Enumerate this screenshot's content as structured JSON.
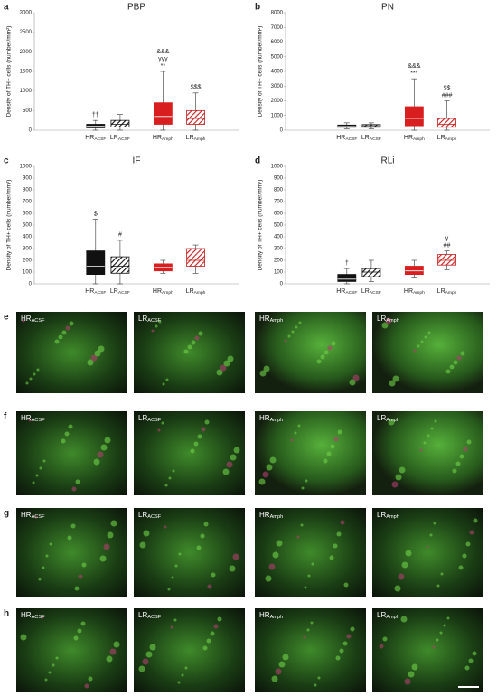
{
  "chart_data": [
    {
      "type": "box",
      "letter": "a",
      "title": "PBP",
      "y_label": "Density of TH+ cells (number/mm²)",
      "categories": [
        "HR",
        "LR",
        "HR",
        "LR"
      ],
      "category_subscripts": [
        "ACSF",
        "ACSF",
        "Amph",
        "Amph"
      ],
      "colors": [
        "#111111",
        "#111111",
        "#d81e1e",
        "#c81e1e"
      ],
      "hatched": [
        false,
        true,
        false,
        true
      ],
      "boxes": [
        {
          "min": 0,
          "q1": 60,
          "median": 100,
          "q3": 150,
          "max": 250
        },
        {
          "min": 0,
          "q1": 80,
          "median": 150,
          "q3": 250,
          "max": 400
        },
        {
          "min": 0,
          "q1": 150,
          "median": 350,
          "q3": 700,
          "max": 1500
        },
        {
          "min": 0,
          "q1": 150,
          "median": 300,
          "q3": 500,
          "max": 950
        }
      ],
      "annotations": [
        [
          "††"
        ],
        [],
        [
          "&&&",
          "γγγ",
          "**"
        ],
        [
          "$$$"
        ]
      ],
      "ylim": [
        0,
        3000
      ],
      "yticks": [
        0,
        500,
        1000,
        1500,
        2000,
        2500,
        3000
      ]
    },
    {
      "type": "box",
      "letter": "b",
      "title": "PN",
      "y_label": "Density of TH+ cells (number/mm²)",
      "categories": [
        "HR",
        "LR",
        "HR",
        "LR"
      ],
      "category_subscripts": [
        "ACSF",
        "ACSF",
        "Amph",
        "Amph"
      ],
      "colors": [
        "#111111",
        "#111111",
        "#d81e1e",
        "#c81e1e"
      ],
      "hatched": [
        false,
        true,
        false,
        true
      ],
      "boxes": [
        {
          "min": 100,
          "q1": 200,
          "median": 250,
          "q3": 350,
          "max": 500
        },
        {
          "min": 100,
          "q1": 200,
          "median": 300,
          "q3": 380,
          "max": 500
        },
        {
          "min": 0,
          "q1": 300,
          "median": 800,
          "q3": 1600,
          "max": 3500
        },
        {
          "min": 0,
          "q1": 200,
          "median": 400,
          "q3": 800,
          "max": 2000
        }
      ],
      "annotations": [
        [],
        [],
        [
          "&&&",
          "***"
        ],
        [
          "$$",
          "###"
        ]
      ],
      "ylim": [
        0,
        8000
      ],
      "yticks": [
        0,
        1000,
        2000,
        3000,
        4000,
        5000,
        6000,
        7000,
        8000
      ]
    },
    {
      "type": "box",
      "letter": "c",
      "title": "IF",
      "y_label": "Density of TH+ cells (number/mm²)",
      "categories": [
        "HR",
        "LR",
        "HR",
        "LR"
      ],
      "category_subscripts": [
        "ACSF",
        "ACSF",
        "Amph",
        "Amph"
      ],
      "colors": [
        "#111111",
        "#111111",
        "#d81e1e",
        "#c81e1e"
      ],
      "hatched": [
        false,
        true,
        false,
        true
      ],
      "boxes": [
        {
          "min": 0,
          "q1": 80,
          "median": 150,
          "q3": 280,
          "max": 550
        },
        {
          "min": 0,
          "q1": 90,
          "median": 150,
          "q3": 230,
          "max": 370
        },
        {
          "min": 90,
          "q1": 110,
          "median": 140,
          "q3": 170,
          "max": 200
        },
        {
          "min": 90,
          "q1": 150,
          "median": 200,
          "q3": 300,
          "max": 330
        }
      ],
      "annotations": [
        [
          "$"
        ],
        [
          "#"
        ],
        [],
        []
      ],
      "ylim": [
        0,
        1000
      ],
      "yticks": [
        0,
        100,
        200,
        300,
        400,
        500,
        600,
        700,
        800,
        900,
        1000
      ]
    },
    {
      "type": "box",
      "letter": "d",
      "title": "RLi",
      "y_label": "Density of TH+ cells (number/mm²)",
      "categories": [
        "HR",
        "LR",
        "HR",
        "LR"
      ],
      "category_subscripts": [
        "ACSF",
        "ACSF",
        "Amph",
        "Amph"
      ],
      "colors": [
        "#111111",
        "#111111",
        "#d81e1e",
        "#c81e1e"
      ],
      "hatched": [
        false,
        true,
        false,
        true
      ],
      "boxes": [
        {
          "min": 0,
          "q1": 20,
          "median": 40,
          "q3": 80,
          "max": 130
        },
        {
          "min": 20,
          "q1": 60,
          "median": 100,
          "q3": 130,
          "max": 200
        },
        {
          "min": 50,
          "q1": 80,
          "median": 110,
          "q3": 150,
          "max": 200
        },
        {
          "min": 120,
          "q1": 160,
          "median": 200,
          "q3": 250,
          "max": 280
        }
      ],
      "annotations": [
        [
          "†"
        ],
        [],
        [],
        [
          "γ",
          "##"
        ]
      ],
      "ylim": [
        0,
        1000
      ],
      "yticks": [
        0,
        100,
        200,
        300,
        400,
        500,
        600,
        700,
        800,
        900,
        1000
      ]
    }
  ],
  "image_panels": {
    "rows": [
      {
        "letter": "e",
        "labels": [
          {
            "main": "HR",
            "sub": "ACSF"
          },
          {
            "main": "LR",
            "sub": "ACSF"
          },
          {
            "main": "HR",
            "sub": "Amph"
          },
          {
            "main": "LR",
            "sub": "Amph"
          }
        ]
      },
      {
        "letter": "f",
        "labels": [
          {
            "main": "HR",
            "sub": "ACSF"
          },
          {
            "main": "LR",
            "sub": "ACSF"
          },
          {
            "main": "HR",
            "sub": "Amph"
          },
          {
            "main": "LR",
            "sub": "Amph"
          }
        ]
      },
      {
        "letter": "g",
        "labels": [
          {
            "main": "HR",
            "sub": "ACSF"
          },
          {
            "main": "LR",
            "sub": "ACSF"
          },
          {
            "main": "HR",
            "sub": "Amph"
          },
          {
            "main": "LR",
            "sub": "Amph"
          }
        ]
      },
      {
        "letter": "h",
        "labels": [
          {
            "main": "HR",
            "sub": "ACSF"
          },
          {
            "main": "LR",
            "sub": "ACSF"
          },
          {
            "main": "HR",
            "sub": "Amph"
          },
          {
            "main": "LR",
            "sub": "Amph"
          }
        ]
      }
    ]
  }
}
